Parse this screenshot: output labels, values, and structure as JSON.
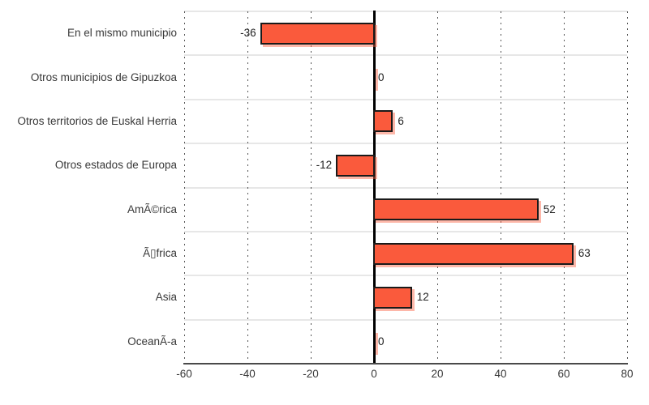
{
  "chart_data": {
    "type": "bar",
    "orientation": "horizontal",
    "title": "",
    "categories": [
      "En el mismo municipio",
      "Otros municipios de Gipuzkoa",
      "Otros territorios de Euskal Herria",
      "Otros estados de Europa",
      "AmÃ©rica",
      "Ã▯frica",
      "Asia",
      "OceanÃ-a"
    ],
    "values": [
      -36,
      0,
      6,
      -12,
      52,
      63,
      12,
      0
    ],
    "value_labels": [
      "-36",
      "0",
      "6",
      "-12",
      "52",
      "63",
      "12",
      "0"
    ],
    "xlim": [
      -60,
      80
    ],
    "xticks": [
      "-60",
      "-40",
      "-20",
      "0",
      "20",
      "40",
      "60",
      "80"
    ],
    "xtick_values": [
      -60,
      -40,
      -20,
      0,
      20,
      40,
      60,
      80
    ],
    "xlabel": "",
    "ylabel": "",
    "legend": "none",
    "grid": "dotted vertical gridlines at each x tick; light horizontal row separators; solid black zero line",
    "colors": {
      "bar_fill": "#FA5A3C",
      "bar_border": "#1A1A1A",
      "bar_shadow": "rgba(250,96,64,0.45)",
      "zero_line": "#000000",
      "axis_line": "#4A4A4A",
      "gridline": "#555555",
      "row_separator": "#E7E7E7",
      "text": "#383838",
      "background": "#FFFFFF"
    }
  }
}
